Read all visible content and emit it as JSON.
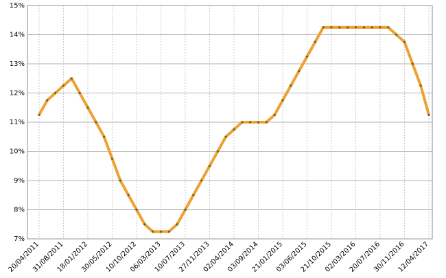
{
  "chart_data": {
    "type": "line",
    "categories": [
      "20/04/2011",
      null,
      null,
      "31/08/2011",
      null,
      null,
      "18/01/2012",
      null,
      null,
      "30/05/2012",
      null,
      null,
      "10/10/2012",
      null,
      null,
      "06/03/2013",
      null,
      null,
      "10/07/2013",
      null,
      null,
      "27/11/2013",
      null,
      null,
      "02/04/2014",
      null,
      null,
      "03/09/2014",
      null,
      null,
      "21/01/2015",
      null,
      null,
      "03/06/2015",
      null,
      null,
      "21/10/2015",
      null,
      null,
      "02/03/2016",
      null,
      null,
      "20/07/2016",
      null,
      null,
      "30/11/2016",
      null,
      null,
      "12/04/2017"
    ],
    "values": [
      11.25,
      11.75,
      12.0,
      12.25,
      12.5,
      12.0,
      11.5,
      11.0,
      10.5,
      9.75,
      9.0,
      8.5,
      8.0,
      7.5,
      7.25,
      7.25,
      7.25,
      7.5,
      8.0,
      8.5,
      9.0,
      9.5,
      10.0,
      10.5,
      10.75,
      11.0,
      11.0,
      11.0,
      11.0,
      11.25,
      11.75,
      12.25,
      12.75,
      13.25,
      13.75,
      14.25,
      14.25,
      14.25,
      14.25,
      14.25,
      14.25,
      14.25,
      14.25,
      14.25,
      14.0,
      13.75,
      13.0,
      12.25,
      11.25
    ],
    "color": "#f0a030",
    "marker_color": "#5a6b3a",
    "ylim": [
      7,
      15
    ],
    "yticks": [
      {
        "value": 7,
        "label": "7%"
      },
      {
        "value": 8,
        "label": "8%"
      },
      {
        "value": 9,
        "label": "9%"
      },
      {
        "value": 10,
        "label": "10%"
      },
      {
        "value": 11,
        "label": "11%"
      },
      {
        "value": 12,
        "label": "12%"
      },
      {
        "value": 13,
        "label": "13%"
      },
      {
        "value": 14,
        "label": "14%"
      },
      {
        "value": 15,
        "label": "15%"
      }
    ],
    "grid": true
  }
}
